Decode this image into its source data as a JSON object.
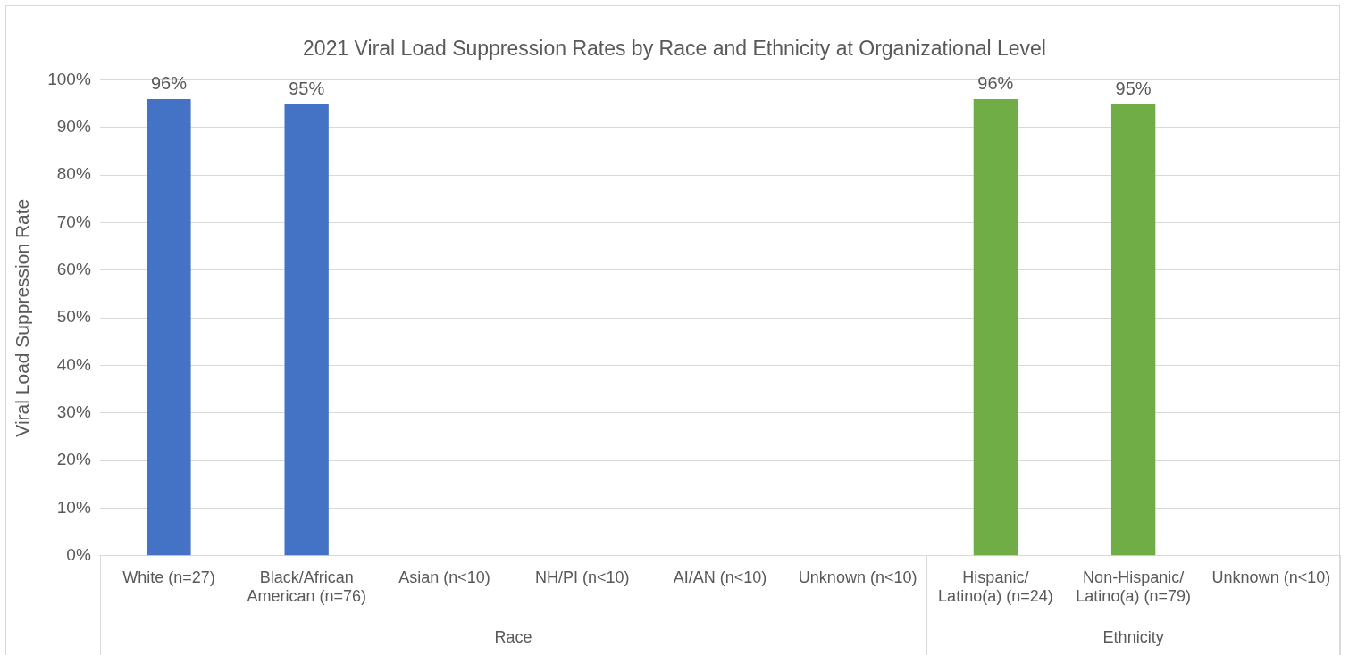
{
  "chart_data": {
    "type": "bar",
    "title": "2021 Viral Load Suppression Rates by Race and Ethnicity at Organizational Level",
    "ylabel": "Viral Load Suppression Rate",
    "categories": [
      "White (n=27)",
      "Black/African American (n=76)",
      "Asian (n<10)",
      "NH/PI (n<10)",
      "AI/AN (n<10)",
      "Unknown (n<10)",
      "Hispanic/ Latino(a) (n=24)",
      "Non-Hispanic/ Latino(a) (n=79)",
      "Unknown (n<10)"
    ],
    "values": [
      96,
      95,
      null,
      null,
      null,
      null,
      96,
      95,
      null
    ],
    "colors": [
      "#4472c4",
      "#4472c4",
      "#4472c4",
      "#4472c4",
      "#4472c4",
      "#4472c4",
      "#70ad47",
      "#70ad47",
      "#70ad47"
    ],
    "value_labels": [
      "96%",
      "95%",
      null,
      null,
      null,
      null,
      "96%",
      "95%",
      null
    ],
    "annotations": [
      "Race",
      "Ethnicity"
    ],
    "ylim": [
      0,
      100
    ],
    "yticks": [
      {
        "value": 0,
        "label": "0%"
      },
      {
        "value": 10,
        "label": "10%"
      },
      {
        "value": 20,
        "label": "20%"
      },
      {
        "value": 30,
        "label": "30%"
      },
      {
        "value": 40,
        "label": "40%"
      },
      {
        "value": 50,
        "label": "50%"
      },
      {
        "value": 60,
        "label": "60%"
      },
      {
        "value": 70,
        "label": "70%"
      },
      {
        "value": 80,
        "label": "80%"
      },
      {
        "value": 90,
        "label": "90%"
      },
      {
        "value": 100,
        "label": "100%"
      }
    ],
    "grid": "y",
    "legend": false
  }
}
